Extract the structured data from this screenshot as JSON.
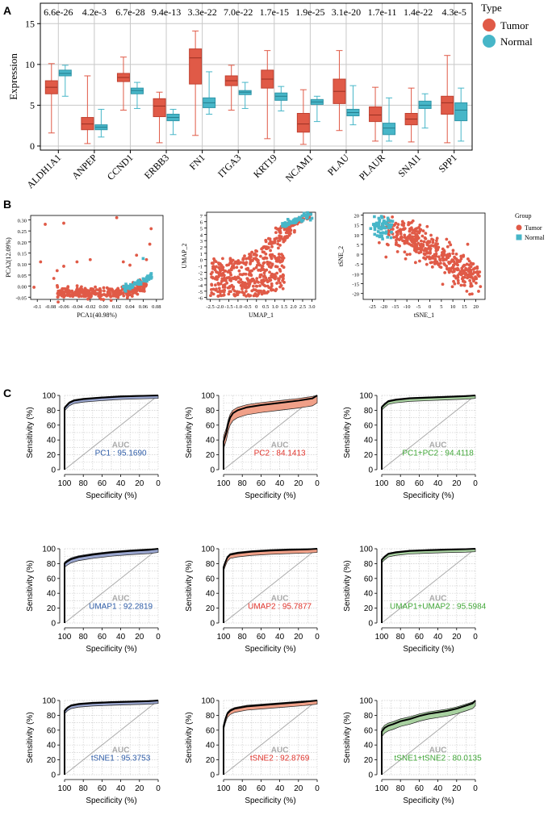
{
  "panels": {
    "A": "A",
    "B": "B",
    "C": "C"
  },
  "chart_data": [
    {
      "type": "box",
      "id": "expression-boxplot",
      "ylabel": "Expression",
      "ylim": [
        -0.5,
        17.5
      ],
      "yticks": [
        0,
        5,
        10,
        15
      ],
      "legend": {
        "title": "Type",
        "entries": [
          {
            "name": "Tumor",
            "color": "#e05a47"
          },
          {
            "name": "Normal",
            "color": "#47b6c8"
          }
        ],
        "position": "right"
      },
      "categories": [
        "ALDH1A1",
        "ANPEP",
        "CCND1",
        "ERBB3",
        "FN1",
        "ITGA3",
        "KRT19",
        "NCAM1",
        "PLAU",
        "PLAUR",
        "SNAI1",
        "SPP1"
      ],
      "pvalues": [
        "6.6e-26",
        "4.2e-3",
        "6.7e-28",
        "9.4e-13",
        "3.3e-22",
        "7.0e-22",
        "1.7e-15",
        "1.9e-25",
        "3.1e-20",
        "1.7e-11",
        "1.4e-22",
        "4.3e-5"
      ],
      "series": [
        {
          "name": "Tumor",
          "color": "#e05a47",
          "stats": [
            [
              1.6,
              6.4,
              7.2,
              8.0,
              10.1
            ],
            [
              0.3,
              2.0,
              2.7,
              3.5,
              8.6
            ],
            [
              4.4,
              7.9,
              8.4,
              8.9,
              10.9
            ],
            [
              0.4,
              3.6,
              4.9,
              5.8,
              6.6
            ],
            [
              1.3,
              7.6,
              10.8,
              11.9,
              14.1
            ],
            [
              4.4,
              7.4,
              8.0,
              8.6,
              9.9
            ],
            [
              0.9,
              7.1,
              8.2,
              9.3,
              11.7
            ],
            [
              0.2,
              1.7,
              2.7,
              4.0,
              6.9
            ],
            [
              1.9,
              5.2,
              6.7,
              8.2,
              11.7
            ],
            [
              0.6,
              3.0,
              3.8,
              4.8,
              7.2
            ],
            [
              0.5,
              2.6,
              3.3,
              4.0,
              7.1
            ],
            [
              0.4,
              3.9,
              5.3,
              6.1,
              11.1
            ]
          ]
        },
        {
          "name": "Normal",
          "color": "#47b6c8",
          "stats": [
            [
              6.1,
              8.6,
              8.9,
              9.3,
              9.9
            ],
            [
              1.1,
              2.0,
              2.3,
              2.6,
              4.5
            ],
            [
              4.6,
              6.4,
              6.8,
              7.1,
              7.8
            ],
            [
              1.4,
              3.1,
              3.5,
              3.9,
              4.5
            ],
            [
              3.9,
              4.7,
              5.3,
              5.9,
              9.1
            ],
            [
              4.6,
              6.3,
              6.6,
              6.8,
              7.8
            ],
            [
              4.3,
              5.6,
              6.1,
              6.5,
              7.3
            ],
            [
              3.0,
              5.1,
              5.4,
              5.7,
              6.1
            ],
            [
              2.6,
              3.7,
              4.1,
              4.5,
              7.4
            ],
            [
              0.6,
              1.4,
              2.2,
              2.8,
              5.9
            ],
            [
              2.2,
              4.6,
              5.0,
              5.5,
              6.4
            ],
            [
              0.6,
              3.1,
              4.4,
              5.3,
              7.1
            ]
          ]
        }
      ]
    },
    {
      "type": "scatter",
      "id": "pca-scatter",
      "xlabel": "PCA1(40.98%)",
      "ylabel": "PCA2(12.09%)",
      "xlim": [
        -0.11,
        0.09
      ],
      "ylim": [
        -0.06,
        0.32
      ],
      "xticks": [
        -0.1,
        -0.08,
        -0.06,
        -0.04,
        -0.02,
        0.0,
        0.02,
        0.04,
        0.06,
        0.08
      ],
      "xtick_labels": [
        "-0.1",
        "-0.08",
        "-0.06",
        "-0.04",
        "-0.02",
        "0.00",
        "0.02",
        "0.04",
        "0.06",
        "0.08"
      ],
      "yticks": [
        -0.05,
        0.0,
        0.05,
        0.1,
        0.15,
        0.2,
        0.25,
        0.3
      ],
      "ytick_labels": [
        "-0.05",
        "0.00",
        "0.05",
        "0.10",
        "0.15",
        "0.20",
        "0.25",
        "0.30"
      ],
      "tumor_outliers": [
        [
          -0.105,
          -0.005
        ],
        [
          -0.088,
          0.28
        ],
        [
          -0.06,
          0.285
        ],
        [
          -0.04,
          0.11
        ],
        [
          0.02,
          0.31
        ],
        [
          0.07,
          0.19
        ],
        [
          0.072,
          0.26
        ],
        [
          -0.095,
          0.11
        ],
        [
          -0.02,
          0.12
        ],
        [
          0.03,
          0.11
        ],
        [
          0.05,
          0.14
        ],
        [
          -0.07,
          0.07
        ],
        [
          -0.075,
          0.035
        ],
        [
          -0.06,
          0.09
        ],
        [
          0.065,
          0.12
        ],
        [
          0.04,
          0.095
        ]
      ],
      "normal_outliers": [
        [
          0.06,
          0.125
        ]
      ]
    },
    {
      "type": "scatter",
      "id": "umap-scatter",
      "xlabel": "UMAP_1",
      "ylabel": "UMAP_2",
      "xlim": [
        -2.7,
        3.2
      ],
      "ylim": [
        -6.3,
        7.5
      ],
      "xticks": [
        -2.5,
        -2.0,
        -1.5,
        -1.0,
        -0.5,
        0.0,
        0.5,
        1.0,
        1.5,
        2.0,
        2.5,
        3.0
      ],
      "xtick_labels": [
        "-2.5",
        "-2.0",
        "-1.5",
        "-1.0",
        "-0.5",
        "0",
        "0.5",
        "1.0",
        "1.5",
        "2.0",
        "2.5",
        "3.0"
      ],
      "yticks": [
        -6,
        -5,
        -4,
        -3,
        -2,
        -1,
        0,
        1,
        2,
        3,
        4,
        5,
        6,
        7
      ],
      "ytick_labels": [
        "-6",
        "-5",
        "-4",
        "-3",
        "-2",
        "-1",
        "0",
        "1",
        "2",
        "3",
        "4",
        "5",
        "6",
        "7"
      ]
    },
    {
      "type": "scatter",
      "id": "tsne-scatter",
      "xlabel": "tSNE_1",
      "ylabel": "tSNE_2",
      "xlim": [
        -29,
        24
      ],
      "ylim": [
        -23,
        21
      ],
      "xticks": [
        -25,
        -20,
        -15,
        -10,
        -5,
        0,
        5,
        10,
        15,
        20
      ],
      "xtick_labels": [
        "-25",
        "-20",
        "-15",
        "-10",
        "-5",
        "0",
        "5",
        "10",
        "15",
        "20"
      ],
      "yticks": [
        -20,
        -15,
        -10,
        -5,
        0,
        5,
        10,
        15,
        20
      ],
      "ytick_labels": [
        "-20",
        "-15",
        "-10",
        "-5",
        "0",
        "5",
        "10",
        "15",
        "20"
      ],
      "legend": {
        "title": "Group",
        "entries": [
          {
            "name": "Tumor",
            "color": "#e05a47",
            "shape": "circle"
          },
          {
            "name": "Normal",
            "color": "#47b6c8",
            "shape": "square"
          }
        ]
      }
    },
    {
      "type": "roc",
      "id": "roc-grid",
      "xlabel": "Specificity (%)",
      "ylabel": "Sensitivity (%)",
      "ticks": [
        0,
        20,
        40,
        60,
        80,
        100
      ],
      "auc_title": "AUC",
      "curves": [
        {
          "name": "PC1",
          "auc_label": "PC1 : 95.1690",
          "color": "#2f5da8",
          "fill": "#9aa6cf",
          "points": [
            [
              100,
              0
            ],
            [
              100,
              83
            ],
            [
              98,
              86
            ],
            [
              95,
              90
            ],
            [
              90,
              93
            ],
            [
              80,
              95
            ],
            [
              60,
              97
            ],
            [
              40,
              98.5
            ],
            [
              20,
              99.3
            ],
            [
              0,
              100
            ]
          ],
          "band": 4
        },
        {
          "name": "PC2",
          "auc_label": "PC2 : 84.1413",
          "color": "#e0342c",
          "fill": "#f0a088",
          "points": [
            [
              100,
              0
            ],
            [
              100,
              38
            ],
            [
              97,
              50
            ],
            [
              95,
              62
            ],
            [
              93,
              70
            ],
            [
              90,
              76
            ],
            [
              85,
              80
            ],
            [
              75,
              84
            ],
            [
              60,
              87
            ],
            [
              40,
              90
            ],
            [
              20,
              93
            ],
            [
              5,
              96
            ],
            [
              0,
              100
            ]
          ],
          "band": 10
        },
        {
          "name": "PC1+PC2",
          "auc_label": "PC1+PC2 : 94.4118",
          "color": "#43a83a",
          "fill": "#a8d1a0",
          "points": [
            [
              100,
              0
            ],
            [
              100,
              84
            ],
            [
              97,
              88
            ],
            [
              93,
              92
            ],
            [
              85,
              94
            ],
            [
              70,
              96
            ],
            [
              50,
              97
            ],
            [
              30,
              98
            ],
            [
              10,
              99
            ],
            [
              0,
              100
            ]
          ],
          "band": 4
        },
        {
          "name": "UMAP1",
          "auc_label": "UMAP1 : 92.2819",
          "color": "#2f5da8",
          "fill": "#9aa6cf",
          "points": [
            [
              100,
              0
            ],
            [
              100,
              80
            ],
            [
              97,
              83
            ],
            [
              93,
              86
            ],
            [
              85,
              89
            ],
            [
              70,
              92
            ],
            [
              50,
              95
            ],
            [
              30,
              97
            ],
            [
              10,
              98.5
            ],
            [
              0,
              100
            ]
          ],
          "band": 5
        },
        {
          "name": "UMAP2",
          "auc_label": "UMAP2 : 95.7877",
          "color": "#e0342c",
          "fill": "#f0a088",
          "points": [
            [
              100,
              0
            ],
            [
              100,
              75
            ],
            [
              98,
              82
            ],
            [
              96,
              88
            ],
            [
              93,
              92
            ],
            [
              85,
              94
            ],
            [
              70,
              96
            ],
            [
              50,
              97.5
            ],
            [
              30,
              98.5
            ],
            [
              10,
              99.2
            ],
            [
              0,
              100
            ]
          ],
          "band": 5
        },
        {
          "name": "UMAP1+UMAP2",
          "auc_label": "UMAP1+UMAP2 : 95.5984",
          "color": "#43a83a",
          "fill": "#a8d1a0",
          "points": [
            [
              100,
              0
            ],
            [
              100,
              85
            ],
            [
              97,
              89
            ],
            [
              93,
              93
            ],
            [
              85,
              95
            ],
            [
              70,
              97
            ],
            [
              50,
              98
            ],
            [
              30,
              98.8
            ],
            [
              10,
              99.4
            ],
            [
              0,
              100
            ]
          ],
          "band": 4
        },
        {
          "name": "tSNE1",
          "auc_label": "tSNE1 : 95.3753",
          "color": "#2f5da8",
          "fill": "#9aa6cf",
          "points": [
            [
              100,
              0
            ],
            [
              100,
              86
            ],
            [
              97,
              90
            ],
            [
              93,
              93
            ],
            [
              85,
              95
            ],
            [
              70,
              96.5
            ],
            [
              50,
              97.5
            ],
            [
              30,
              98.3
            ],
            [
              10,
              99
            ],
            [
              0,
              100
            ]
          ],
          "band": 4
        },
        {
          "name": "tSNE2",
          "auc_label": "tSNE2 : 92.8769",
          "color": "#e0342c",
          "fill": "#f0a088",
          "points": [
            [
              100,
              0
            ],
            [
              100,
              65
            ],
            [
              98,
              75
            ],
            [
              96,
              82
            ],
            [
              93,
              86
            ],
            [
              88,
              89
            ],
            [
              75,
              92
            ],
            [
              55,
              94
            ],
            [
              35,
              96
            ],
            [
              15,
              98
            ],
            [
              0,
              100
            ]
          ],
          "band": 5
        },
        {
          "name": "tSNE1+tSNE2",
          "auc_label": "tSNE1+tSNE2 : 80.0135",
          "color": "#43a83a",
          "fill": "#a8d1a0",
          "points": [
            [
              100,
              0
            ],
            [
              100,
              58
            ],
            [
              97,
              63
            ],
            [
              93,
              66
            ],
            [
              88,
              68
            ],
            [
              80,
              72
            ],
            [
              70,
              75
            ],
            [
              60,
              79
            ],
            [
              50,
              82
            ],
            [
              40,
              84
            ],
            [
              30,
              86
            ],
            [
              20,
              89
            ],
            [
              10,
              93
            ],
            [
              3,
              96
            ],
            [
              0,
              100
            ]
          ],
          "band": 7
        }
      ]
    }
  ]
}
